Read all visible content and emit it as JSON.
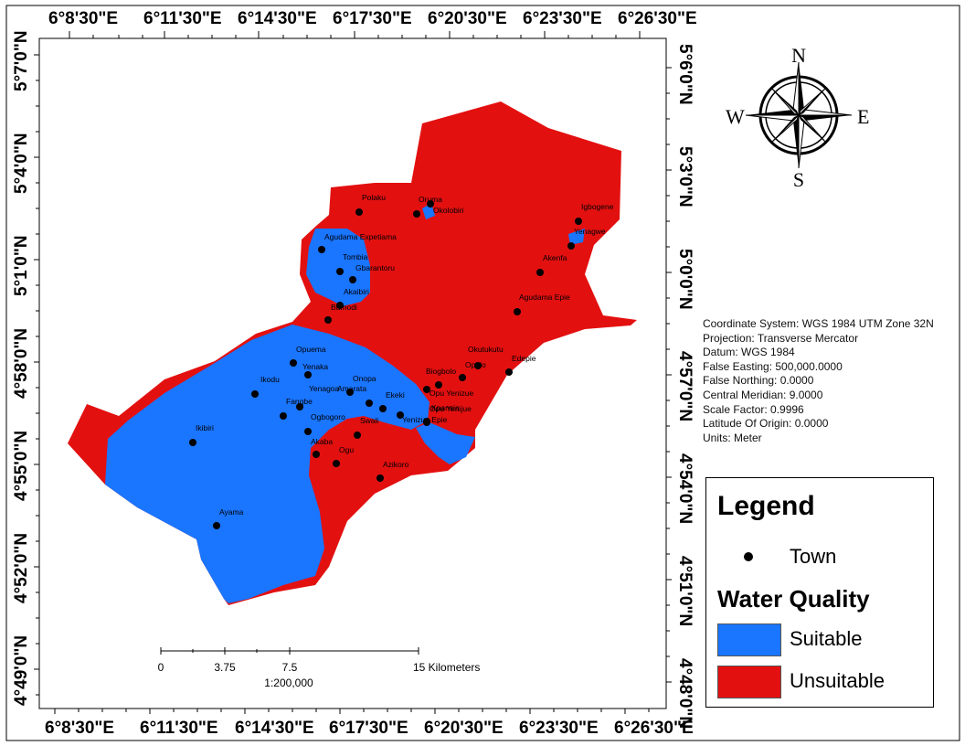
{
  "map": {
    "top_coords": [
      "6°8'30\"E",
      "6°11'30\"E",
      "6°14'30\"E",
      "6°17'30\"E",
      "6°20'30\"E",
      "6°23'30\"E",
      "6°26'30\"E"
    ],
    "bottom_coords": [
      "6°8'30\"E",
      "6°11'30\"E",
      "6°14'30\"E",
      "6°17'30\"E",
      "6°20'30\"E",
      "6°23'30\"E",
      "6°26'30\"E"
    ],
    "left_coords": [
      "5°7'0\"N",
      "5°4'0\"N",
      "5°1'0\"N",
      "4°58'0\"N",
      "4°55'0\"N",
      "4°52'0\"N",
      "4°49'0\"N"
    ],
    "right_coords": [
      "5°6'0\"N",
      "5°3'0\"N",
      "5°0'0\"N",
      "4°57'0\"N",
      "4°54'0\"N",
      "4°51'0\"N",
      "4°48'0\"N"
    ],
    "colors": {
      "suitable": "#1a75ff",
      "unsuitable": "#e31010"
    },
    "towns": [
      {
        "name": "Polaku"
      },
      {
        "name": "Oruma"
      },
      {
        "name": "Okolobiri"
      },
      {
        "name": "Igbogene"
      },
      {
        "name": "Yenagwe"
      },
      {
        "name": "Agudama Expetiama"
      },
      {
        "name": "Akenfa"
      },
      {
        "name": "Tombia"
      },
      {
        "name": "Gbarantoru"
      },
      {
        "name": "Akaibiri"
      },
      {
        "name": "Agudama Epie"
      },
      {
        "name": "Bumodi"
      },
      {
        "name": "Opuema"
      },
      {
        "name": "Okutukutu"
      },
      {
        "name": "Edepie"
      },
      {
        "name": "Yenaka"
      },
      {
        "name": "Onopa"
      },
      {
        "name": "Biogbolo"
      },
      {
        "name": "Opolo"
      },
      {
        "name": "Ikodu"
      },
      {
        "name": "Opu Yenijue"
      },
      {
        "name": "Yenagoa"
      },
      {
        "name": "Amarata"
      },
      {
        "name": "Opu Yenizue"
      },
      {
        "name": "Ekeki"
      },
      {
        "name": "Fangbe"
      },
      {
        "name": "Kpansia"
      },
      {
        "name": "Ogbogoro"
      },
      {
        "name": "Swali"
      },
      {
        "name": "Yenizue Epie"
      },
      {
        "name": "Ikibiri"
      },
      {
        "name": "Akaba"
      },
      {
        "name": "Ogu"
      },
      {
        "name": "Azikoro"
      },
      {
        "name": "Ayama"
      }
    ]
  },
  "scale_bar": {
    "ticks": [
      "0",
      "3.75",
      "7.5",
      "15 Kilometers"
    ],
    "ratio": "1:200,000"
  },
  "compass": {
    "n": "N",
    "s": "S",
    "e": "E",
    "w": "W"
  },
  "info": [
    "Coordinate System: WGS 1984 UTM Zone 32N",
    "Projection: Transverse Mercator",
    "Datum: WGS 1984",
    "False Easting: 500,000.0000",
    "False Northing: 0.0000",
    "Central Meridian: 9.0000",
    "Scale Factor: 0.9996",
    "Latitude Of Origin: 0.0000",
    "Units: Meter"
  ],
  "legend": {
    "title": "Legend",
    "town_label": "Town",
    "wq_title": "Water Quality",
    "suitable_label": "Suitable",
    "unsuitable_label": "Unsuitable"
  }
}
